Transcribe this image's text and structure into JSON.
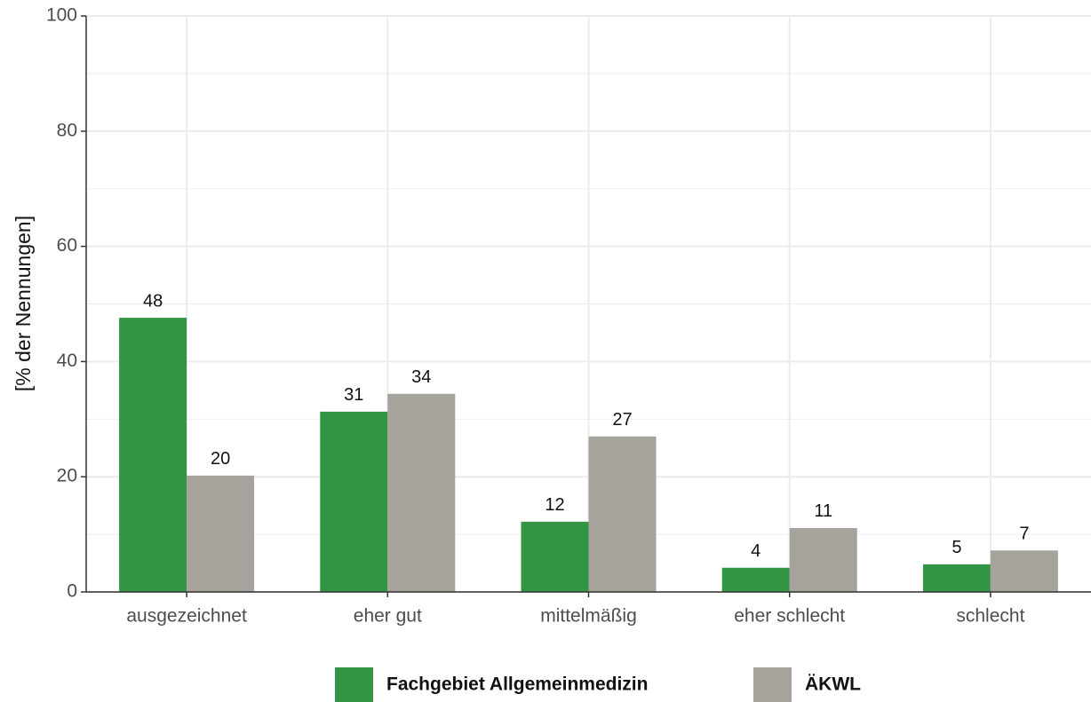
{
  "chart_data": {
    "type": "bar",
    "y_label": "[% der Nennungen]",
    "categories": [
      "ausgezeichnet",
      "eher gut",
      "mittelmäßig",
      "eher schlecht",
      "schlecht"
    ],
    "series": [
      {
        "name": "Fachgebiet Allgemeinmedizin",
        "color": "#339444",
        "values": [
          47.6,
          31.3,
          12.2,
          4.2,
          4.8
        ],
        "value_labels": [
          "48",
          "31",
          "12",
          "4",
          "5"
        ]
      },
      {
        "name": "ÄKWL",
        "color": "#a6a39c",
        "values": [
          20.2,
          34.4,
          27.0,
          11.1,
          7.2
        ],
        "value_labels": [
          "20",
          "34",
          "27",
          "11",
          "7"
        ]
      }
    ],
    "ylim": [
      0,
      100
    ],
    "yticks": [
      0,
      20,
      40,
      60,
      80,
      100
    ],
    "grid": true,
    "legend": "bottom"
  }
}
